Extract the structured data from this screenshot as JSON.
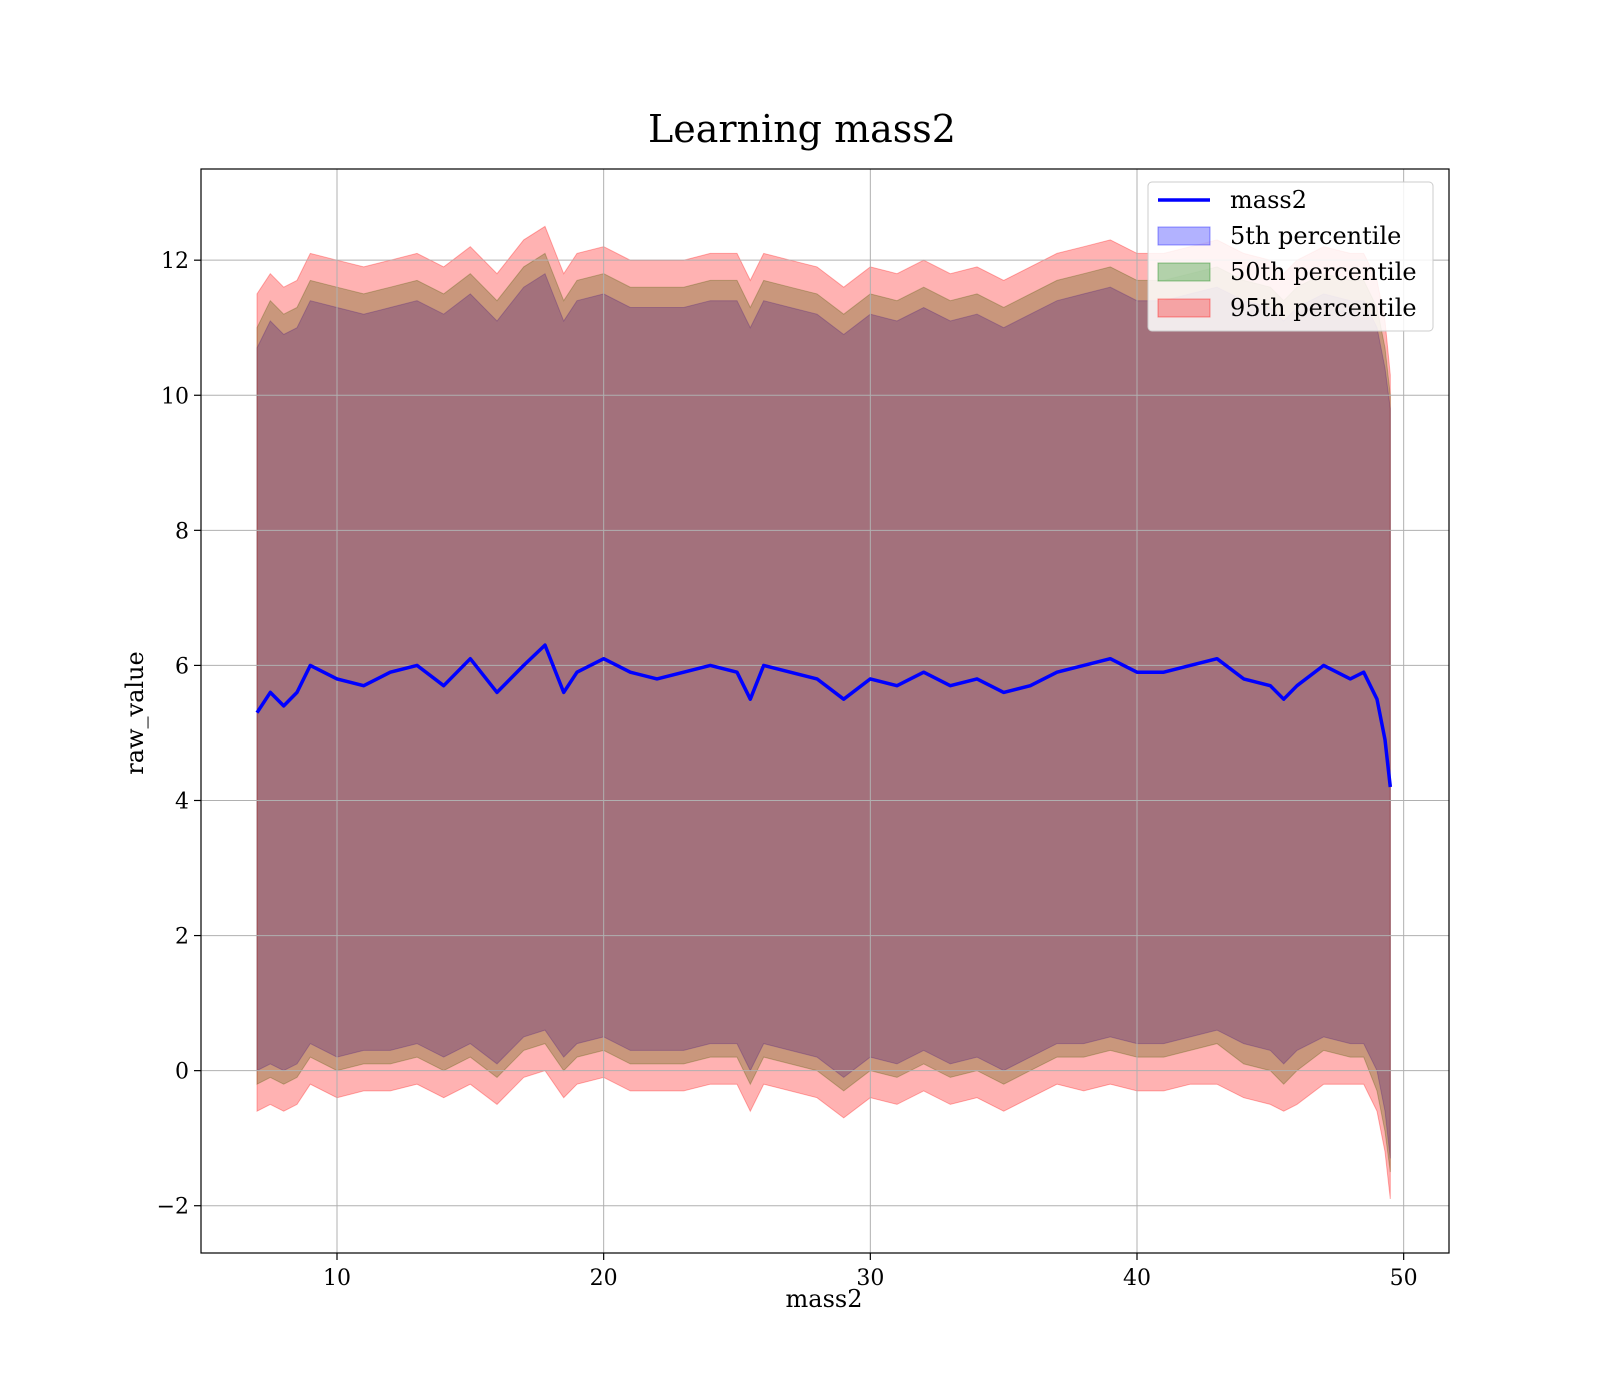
{
  "chart_data": {
    "type": "area",
    "title": "Learning mass2",
    "xlabel": "mass2",
    "ylabel": "raw_value",
    "xlim": [
      4.9,
      51.7
    ],
    "ylim": [
      -2.7,
      13.35
    ],
    "xticks": [
      10,
      20,
      30,
      40,
      50
    ],
    "yticks": [
      -2,
      0,
      2,
      4,
      6,
      8,
      10,
      12
    ],
    "xtick_labels": [
      "10",
      "20",
      "30",
      "40",
      "50"
    ],
    "ytick_labels": [
      "−2",
      "0",
      "2",
      "4",
      "6",
      "8",
      "10",
      "12"
    ],
    "grid": true,
    "legend_position": "top-right",
    "x": [
      7.0,
      7.5,
      8.0,
      8.5,
      9.0,
      10.0,
      11.0,
      12.0,
      13.0,
      14.0,
      15.0,
      16.0,
      17.0,
      17.8,
      18.5,
      19.0,
      20.0,
      21.0,
      22.0,
      23.0,
      24.0,
      25.0,
      25.5,
      26.0,
      27.0,
      28.0,
      29.0,
      30.0,
      31.0,
      32.0,
      33.0,
      34.0,
      35.0,
      36.0,
      37.0,
      38.0,
      39.0,
      40.0,
      41.0,
      42.0,
      43.0,
      44.0,
      45.0,
      45.5,
      46.0,
      47.0,
      48.0,
      48.5,
      49.0,
      49.3,
      49.5
    ],
    "series": [
      {
        "name": "mass2",
        "kind": "line",
        "color": "#0000ff",
        "values": [
          5.3,
          5.6,
          5.4,
          5.6,
          6.0,
          5.8,
          5.7,
          5.9,
          6.0,
          5.7,
          6.1,
          5.6,
          6.0,
          6.3,
          5.6,
          5.9,
          6.1,
          5.9,
          5.8,
          5.9,
          6.0,
          5.9,
          5.5,
          6.0,
          5.9,
          5.8,
          5.5,
          5.8,
          5.7,
          5.9,
          5.7,
          5.8,
          5.6,
          5.7,
          5.9,
          6.0,
          6.1,
          5.9,
          5.9,
          6.0,
          6.1,
          5.8,
          5.7,
          5.5,
          5.7,
          6.0,
          5.8,
          5.9,
          5.5,
          4.9,
          4.2
        ]
      },
      {
        "name": "5th percentile",
        "kind": "band",
        "color": "#0000ff",
        "lower": [
          0.0,
          0.1,
          0.0,
          0.1,
          0.4,
          0.2,
          0.3,
          0.3,
          0.4,
          0.2,
          0.4,
          0.1,
          0.5,
          0.6,
          0.2,
          0.4,
          0.5,
          0.3,
          0.3,
          0.3,
          0.4,
          0.4,
          0.0,
          0.4,
          0.3,
          0.2,
          -0.1,
          0.2,
          0.1,
          0.3,
          0.1,
          0.2,
          0.0,
          0.2,
          0.4,
          0.4,
          0.5,
          0.4,
          0.4,
          0.5,
          0.6,
          0.4,
          0.3,
          0.1,
          0.3,
          0.5,
          0.4,
          0.4,
          0.0,
          -0.6,
          -1.3
        ],
        "upper": [
          10.7,
          11.1,
          10.9,
          11.0,
          11.4,
          11.3,
          11.2,
          11.3,
          11.4,
          11.2,
          11.5,
          11.1,
          11.6,
          11.8,
          11.1,
          11.4,
          11.5,
          11.3,
          11.3,
          11.3,
          11.4,
          11.4,
          11.0,
          11.4,
          11.3,
          11.2,
          10.9,
          11.2,
          11.1,
          11.3,
          11.1,
          11.2,
          11.0,
          11.2,
          11.4,
          11.5,
          11.6,
          11.4,
          11.4,
          11.5,
          11.6,
          11.4,
          11.3,
          11.1,
          11.3,
          11.5,
          11.4,
          11.4,
          11.0,
          10.4,
          9.8
        ]
      },
      {
        "name": "50th percentile",
        "kind": "band",
        "color": "#008000",
        "lower": [
          -0.2,
          -0.1,
          -0.2,
          -0.1,
          0.2,
          0.0,
          0.1,
          0.1,
          0.2,
          0.0,
          0.2,
          -0.1,
          0.3,
          0.4,
          0.0,
          0.2,
          0.3,
          0.1,
          0.1,
          0.1,
          0.2,
          0.2,
          -0.2,
          0.2,
          0.1,
          0.0,
          -0.3,
          0.0,
          -0.1,
          0.1,
          -0.1,
          0.0,
          -0.2,
          0.0,
          0.2,
          0.2,
          0.3,
          0.2,
          0.2,
          0.3,
          0.4,
          0.1,
          0.0,
          -0.2,
          0.0,
          0.3,
          0.2,
          0.2,
          -0.3,
          -0.9,
          -1.5
        ],
        "upper": [
          11.0,
          11.4,
          11.2,
          11.3,
          11.7,
          11.6,
          11.5,
          11.6,
          11.7,
          11.5,
          11.8,
          11.4,
          11.9,
          12.1,
          11.4,
          11.7,
          11.8,
          11.6,
          11.6,
          11.6,
          11.7,
          11.7,
          11.3,
          11.7,
          11.6,
          11.5,
          11.2,
          11.5,
          11.4,
          11.6,
          11.4,
          11.5,
          11.3,
          11.5,
          11.7,
          11.8,
          11.9,
          11.7,
          11.7,
          11.8,
          11.9,
          11.7,
          11.6,
          11.4,
          11.6,
          11.8,
          11.7,
          11.7,
          11.3,
          10.7,
          10.0
        ]
      },
      {
        "name": "95th percentile",
        "kind": "band",
        "color": "#ff0000",
        "lower": [
          -0.6,
          -0.5,
          -0.6,
          -0.5,
          -0.2,
          -0.4,
          -0.3,
          -0.3,
          -0.2,
          -0.4,
          -0.2,
          -0.5,
          -0.1,
          0.0,
          -0.4,
          -0.2,
          -0.1,
          -0.3,
          -0.3,
          -0.3,
          -0.2,
          -0.2,
          -0.6,
          -0.2,
          -0.3,
          -0.4,
          -0.7,
          -0.4,
          -0.5,
          -0.3,
          -0.5,
          -0.4,
          -0.6,
          -0.4,
          -0.2,
          -0.3,
          -0.2,
          -0.3,
          -0.3,
          -0.2,
          -0.2,
          -0.4,
          -0.5,
          -0.6,
          -0.5,
          -0.2,
          -0.2,
          -0.2,
          -0.6,
          -1.2,
          -1.9
        ],
        "upper": [
          11.5,
          11.8,
          11.6,
          11.7,
          12.1,
          12.0,
          11.9,
          12.0,
          12.1,
          11.9,
          12.2,
          11.8,
          12.3,
          12.5,
          11.8,
          12.1,
          12.2,
          12.0,
          12.0,
          12.0,
          12.1,
          12.1,
          11.7,
          12.1,
          12.0,
          11.9,
          11.6,
          11.9,
          11.8,
          12.0,
          11.8,
          11.9,
          11.7,
          11.9,
          12.1,
          12.2,
          12.3,
          12.1,
          12.1,
          12.2,
          12.3,
          12.1,
          12.0,
          11.8,
          12.0,
          12.2,
          12.1,
          12.1,
          11.7,
          11.1,
          10.3
        ]
      }
    ]
  }
}
